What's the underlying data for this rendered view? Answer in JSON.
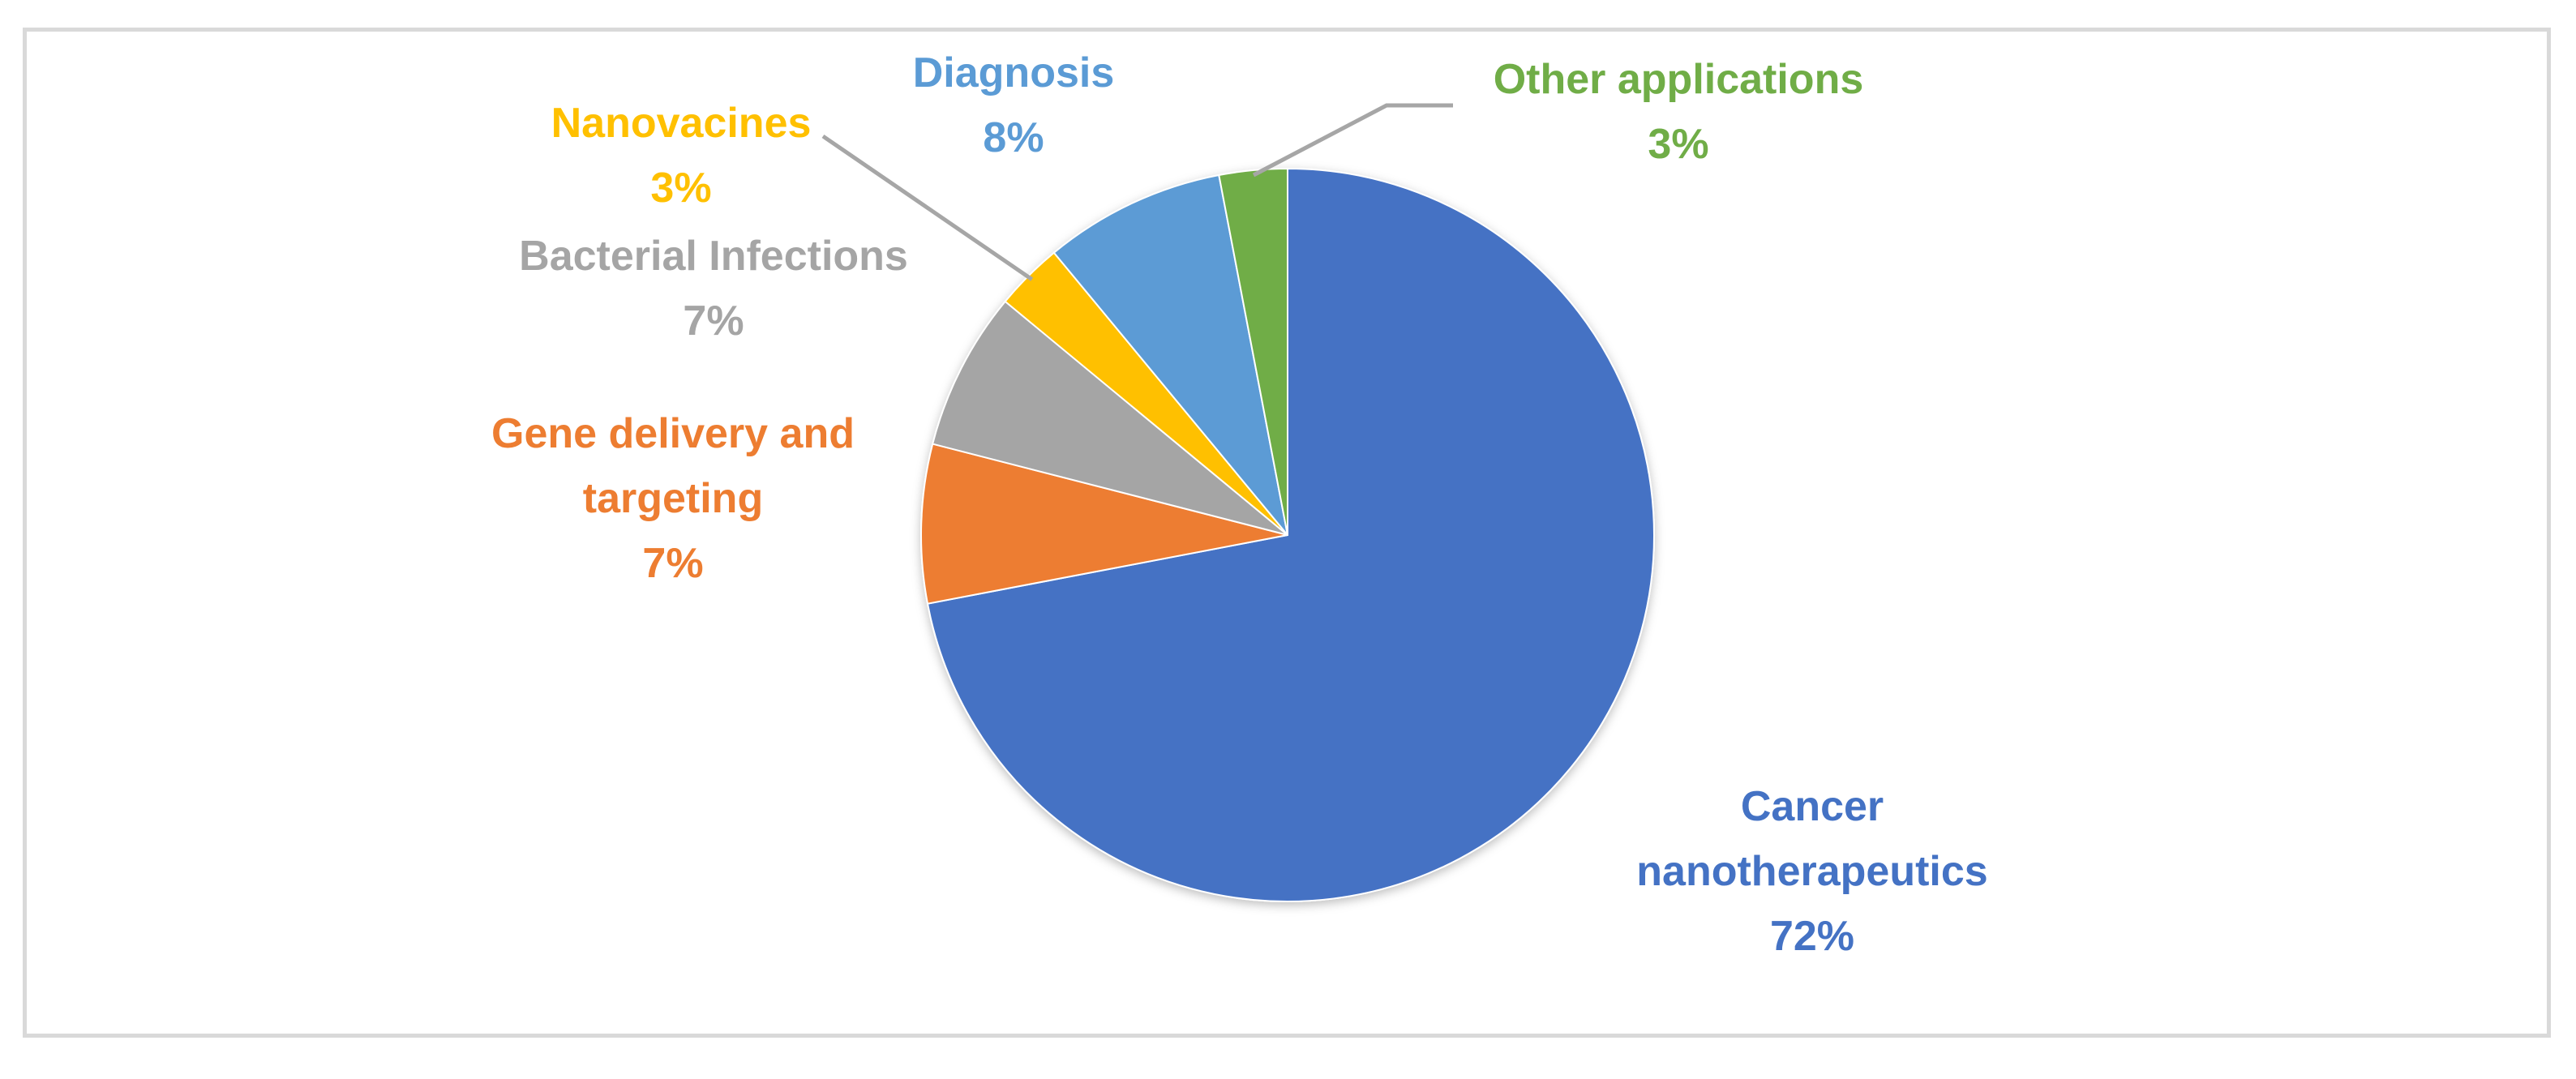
{
  "chart_data": {
    "type": "pie",
    "slices": [
      {
        "label": "Cancer nanotherapeutics",
        "value": 72,
        "percent_text": "72%",
        "color": "#4472C4"
      },
      {
        "label": "Gene delivery and targeting",
        "value": 7,
        "percent_text": "7%",
        "color": "#ED7D31"
      },
      {
        "label": "Bacterial Infections",
        "value": 7,
        "percent_text": "7%",
        "color": "#A5A5A5"
      },
      {
        "label": "Nanovacines",
        "value": 3,
        "percent_text": "3%",
        "color": "#FFC000"
      },
      {
        "label": "Diagnosis",
        "value": 8,
        "percent_text": "8%",
        "color": "#5B9BD5"
      },
      {
        "label": "Other applications",
        "value": 3,
        "percent_text": "3%",
        "color": "#70AD47"
      }
    ],
    "start_angle": "12 o'clock",
    "direction": "clockwise",
    "leader_lines": [
      "Nanovacines",
      "Other applications"
    ],
    "legend": "none"
  }
}
